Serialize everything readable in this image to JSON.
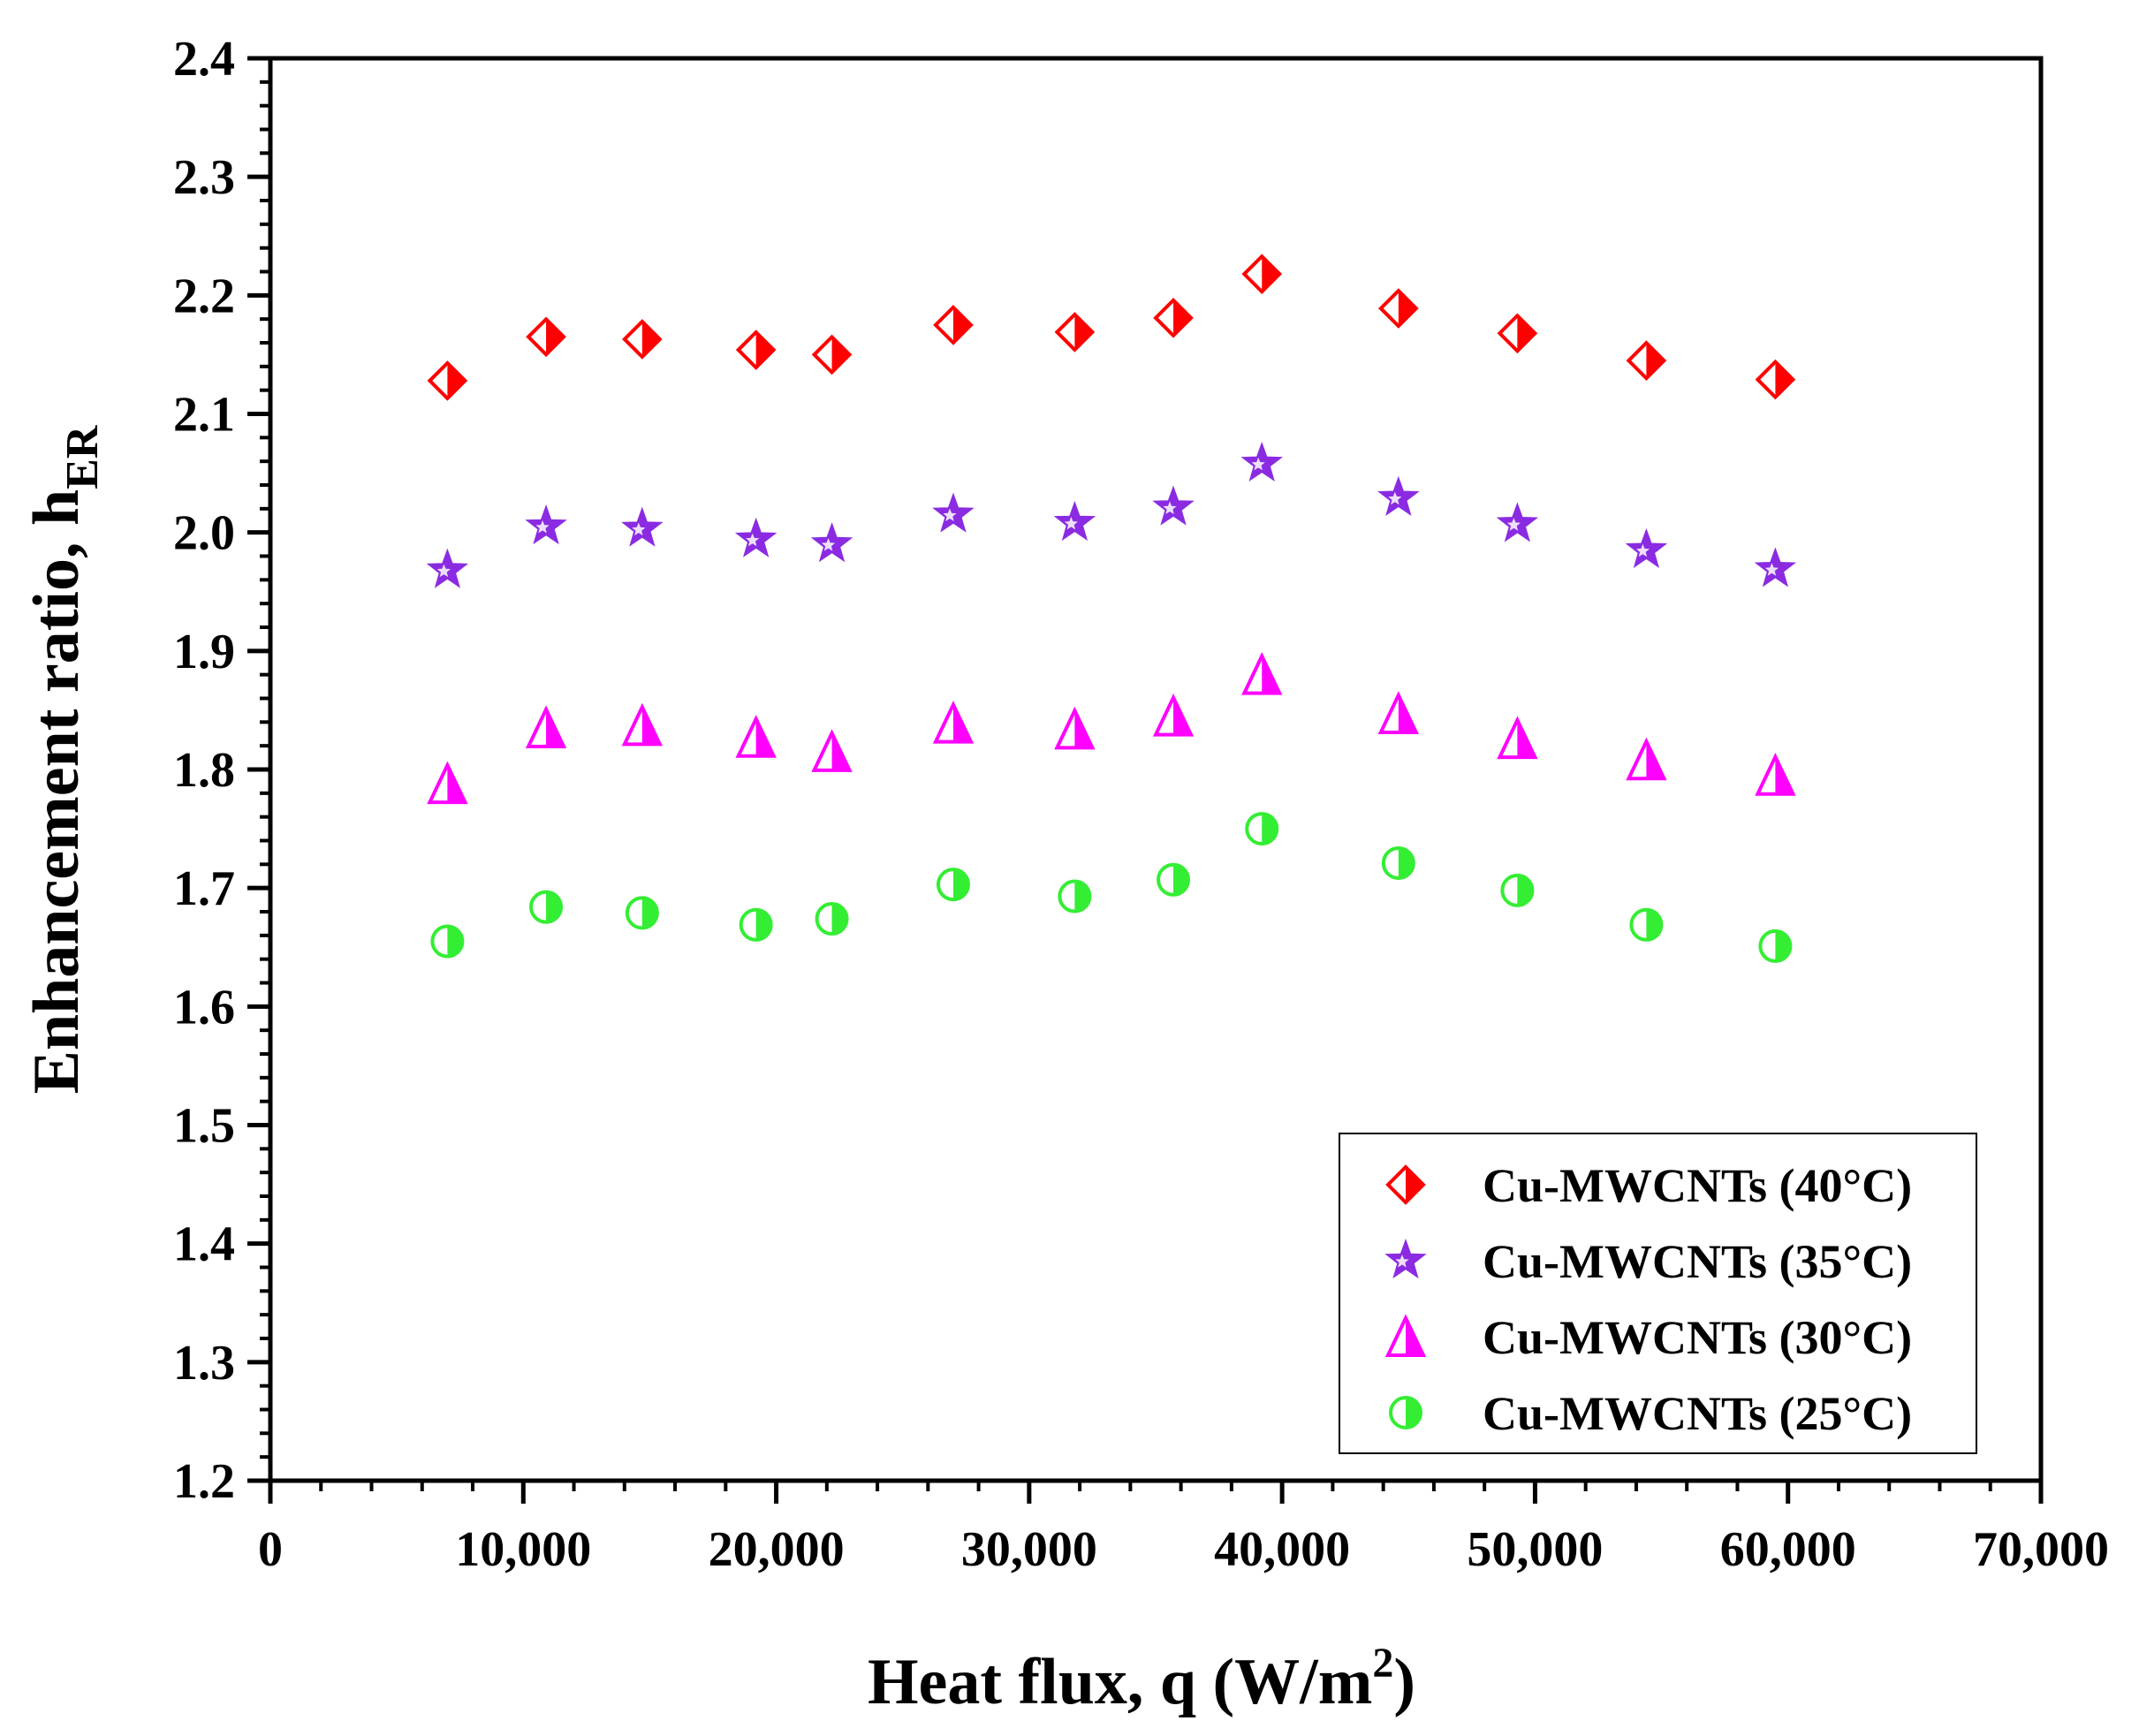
{
  "chart_data": {
    "type": "scatter",
    "title": "",
    "xlabel": "Heat flux, q (W/m",
    "xlabel_sup": "2",
    "xlabel_end": ")",
    "ylabel": "Enhancement ratio, h",
    "ylabel_sub": "ER",
    "xlim": [
      0,
      70000
    ],
    "ylim": [
      1.2,
      2.4
    ],
    "x_ticks": [
      0,
      10000,
      20000,
      30000,
      40000,
      50000,
      60000,
      70000
    ],
    "x_tick_labels": [
      "0",
      "10,000",
      "20,000",
      "30,000",
      "40,000",
      "50,000",
      "60,000",
      "70,000"
    ],
    "y_ticks": [
      1.2,
      1.3,
      1.4,
      1.5,
      1.6,
      1.7,
      1.8,
      1.9,
      2.0,
      2.1,
      2.2,
      2.3,
      2.4
    ],
    "y_tick_labels": [
      "1.2",
      "1.3",
      "1.4",
      "1.5",
      "1.6",
      "1.7",
      "1.8",
      "1.9",
      "2.0",
      "2.1",
      "2.2",
      "2.3",
      "2.4"
    ],
    "grid": false,
    "legend_position": "bottom-right",
    "x": [
      7000,
      10900,
      14700,
      19200,
      22200,
      27000,
      31800,
      35700,
      39200,
      44600,
      49300,
      54400,
      59500
    ],
    "series": [
      {
        "name": "Cu-MWCNTs (40°C)",
        "marker": "diamond",
        "color": "#ff0000",
        "values": [
          2.128,
          2.165,
          2.163,
          2.154,
          2.15,
          2.175,
          2.169,
          2.181,
          2.218,
          2.189,
          2.168,
          2.145,
          2.129
        ]
      },
      {
        "name": "Cu-MWCNTs (35°C)",
        "marker": "star",
        "color": "#8a2be2",
        "values": [
          1.968,
          2.005,
          2.003,
          1.994,
          1.99,
          2.015,
          2.008,
          2.021,
          2.058,
          2.029,
          2.007,
          1.985,
          1.969
        ]
      },
      {
        "name": "Cu-MWCNTs (30°C)",
        "marker": "triangle",
        "color": "#ff00ff",
        "values": [
          1.788,
          1.835,
          1.837,
          1.827,
          1.815,
          1.839,
          1.834,
          1.845,
          1.88,
          1.847,
          1.826,
          1.808,
          1.795
        ]
      },
      {
        "name": "Cu-MWCNTs (25°C)",
        "marker": "circle",
        "color": "#33ee33",
        "values": [
          1.655,
          1.684,
          1.679,
          1.669,
          1.674,
          1.703,
          1.693,
          1.707,
          1.75,
          1.721,
          1.698,
          1.669,
          1.651
        ]
      }
    ]
  }
}
